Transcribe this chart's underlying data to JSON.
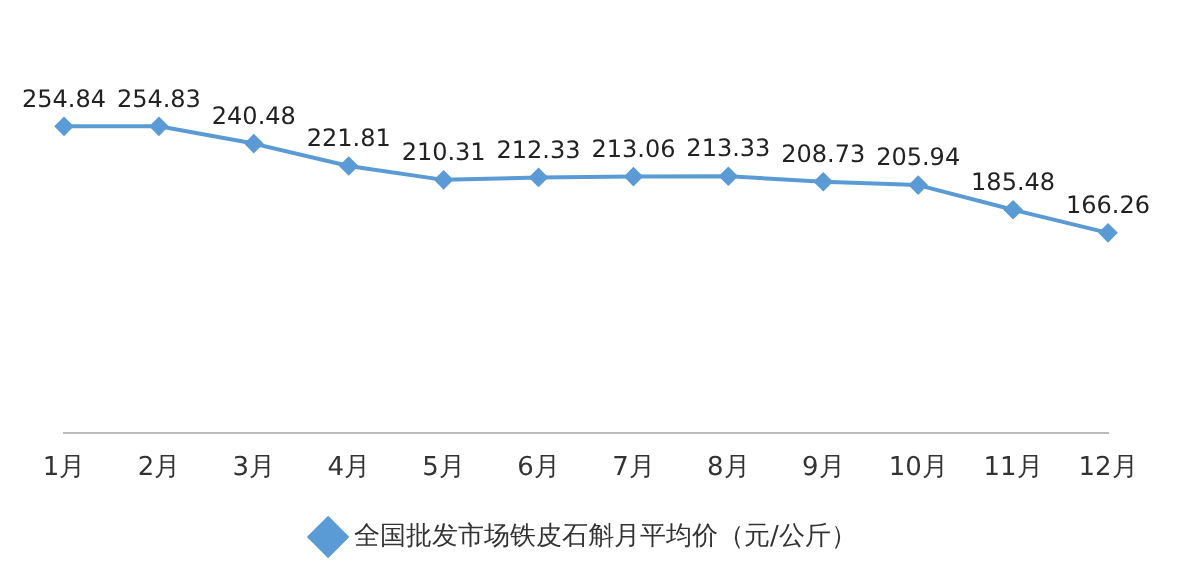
{
  "chart_data": {
    "type": "line",
    "categories": [
      "1月",
      "2月",
      "3月",
      "4月",
      "5月",
      "6月",
      "7月",
      "8月",
      "9月",
      "10月",
      "11月",
      "12月"
    ],
    "series": [
      {
        "name": "全国批发市场铁皮石斛月平均价（元/公斤）",
        "color": "#5b9bd5",
        "values": [
          254.84,
          254.83,
          240.48,
          221.81,
          210.31,
          212.33,
          213.06,
          213.33,
          208.73,
          205.94,
          185.48,
          166.26
        ]
      }
    ],
    "data_labels": true,
    "legend": "bottom",
    "grid": false,
    "tick_labels": "x",
    "marker": "diamond",
    "line_style": "solid"
  }
}
